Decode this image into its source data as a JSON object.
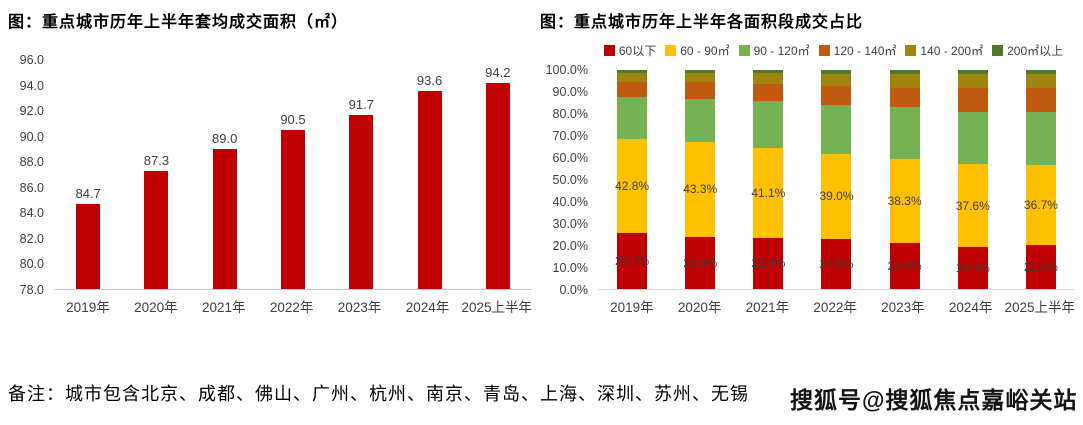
{
  "left_chart": {
    "title": "图：重点城市历年上半年套均成交面积（㎡）"
  },
  "right_chart": {
    "title": "图：重点城市历年上半年各面积段成交占比"
  },
  "chart_data": [
    {
      "type": "bar",
      "title": "图：重点城市历年上半年套均成交面积（㎡）",
      "categories": [
        "2019年",
        "2020年",
        "2021年",
        "2022年",
        "2023年",
        "2024年",
        "2025上半年"
      ],
      "values": [
        84.7,
        87.3,
        89.0,
        90.5,
        91.7,
        93.6,
        94.2
      ],
      "value_labels": [
        "84.7",
        "87.3",
        "89.0",
        "90.5",
        "91.7",
        "93.6",
        "94.2"
      ],
      "bar_color": "#C00000",
      "xlabel": "",
      "ylabel": "",
      "ylim": [
        78.0,
        96.0
      ],
      "ytick_step": 2.0,
      "ytick_labels": [
        "96.0",
        "94.0",
        "92.0",
        "90.0",
        "88.0",
        "86.0",
        "84.0",
        "82.0",
        "80.0",
        "78.0"
      ],
      "grid": false,
      "legend_position": "none"
    },
    {
      "type": "stacked-bar-percent",
      "title": "图：重点城市历年上半年各面积段成交占比",
      "categories": [
        "2019年",
        "2020年",
        "2021年",
        "2022年",
        "2023年",
        "2024年",
        "2025上半年"
      ],
      "series": [
        {
          "name": "60以下",
          "color": "#C00000",
          "values": [
            25.7,
            23.8,
            23.4,
            22.8,
            21.0,
            19.3,
            20.0
          ],
          "labels": [
            "25.7%",
            "23.8%",
            "23.4%",
            "22.8%",
            "21.0%",
            "19.3%",
            "20.0%"
          ]
        },
        {
          "name": "60 - 90㎡",
          "color": "#FFC000",
          "values": [
            42.8,
            43.3,
            41.1,
            39.0,
            38.3,
            37.6,
            36.7
          ],
          "labels": [
            "42.8%",
            "43.3%",
            "41.1%",
            "39.0%",
            "38.3%",
            "37.6%",
            "36.7%"
          ]
        },
        {
          "name": "90 - 120㎡",
          "color": "#76B153",
          "values": [
            19.1,
            19.9,
            21.5,
            22.2,
            23.7,
            24.0,
            24.2
          ],
          "labels": null
        },
        {
          "name": "120 - 140㎡",
          "color": "#C05A11",
          "values": [
            7.0,
            7.5,
            7.8,
            8.7,
            9.0,
            11.0,
            11.0
          ],
          "labels": null
        },
        {
          "name": "140 - 200㎡",
          "color": "#A08410",
          "values": [
            4.2,
            4.2,
            4.7,
            5.3,
            6.0,
            6.3,
            6.1
          ],
          "labels": null
        },
        {
          "name": "200㎡以上",
          "color": "#4F7B28",
          "values": [
            1.2,
            1.3,
            1.5,
            2.0,
            2.0,
            1.8,
            2.0
          ],
          "labels": null
        }
      ],
      "xlabel": "",
      "ylabel": "",
      "ylim": [
        0,
        100
      ],
      "ytick_step": 10,
      "ytick_labels": [
        "100.0%",
        "90.0%",
        "80.0%",
        "70.0%",
        "60.0%",
        "50.0%",
        "40.0%",
        "30.0%",
        "20.0%",
        "10.0%",
        "0.0%"
      ],
      "grid": false,
      "legend_position": "top"
    }
  ],
  "note": {
    "text": "备注：城市包含北京、成都、佛山、广州、杭州、南京、青岛、上海、深圳、苏州、无锡"
  },
  "watermark": {
    "text": "搜狐号@搜狐焦点嘉峪关站"
  }
}
